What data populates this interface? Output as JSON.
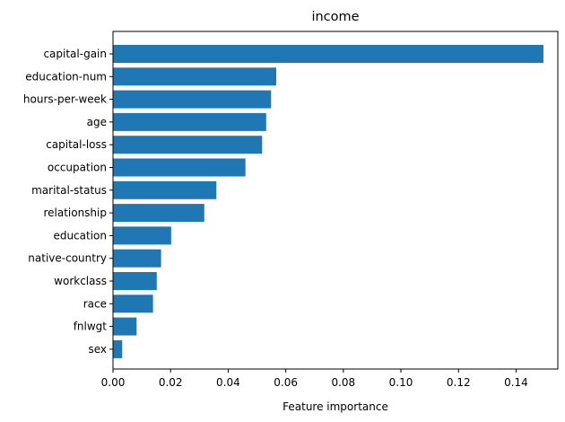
{
  "chart_data": {
    "type": "bar",
    "orientation": "horizontal",
    "title": "income",
    "xlabel": "Feature importance",
    "ylabel": "",
    "xlim": [
      0,
      0.1545
    ],
    "x_ticks": [
      "0.00",
      "0.02",
      "0.04",
      "0.06",
      "0.08",
      "0.10",
      "0.12",
      "0.14"
    ],
    "x_tick_values": [
      0,
      0.02,
      0.04,
      0.06,
      0.08,
      0.1,
      0.12,
      0.14
    ],
    "categories": [
      "capital-gain",
      "education-num",
      "hours-per-week",
      "age",
      "capital-loss",
      "occupation",
      "marital-status",
      "relationship",
      "education",
      "native-country",
      "workclass",
      "race",
      "fnlwgt",
      "sex"
    ],
    "values": [
      0.1495,
      0.0567,
      0.0549,
      0.0532,
      0.0518,
      0.046,
      0.0359,
      0.0317,
      0.0202,
      0.0167,
      0.0152,
      0.0139,
      0.0082,
      0.0032
    ],
    "bar_color": "#1f77b4",
    "grid": false,
    "legend": "none"
  }
}
